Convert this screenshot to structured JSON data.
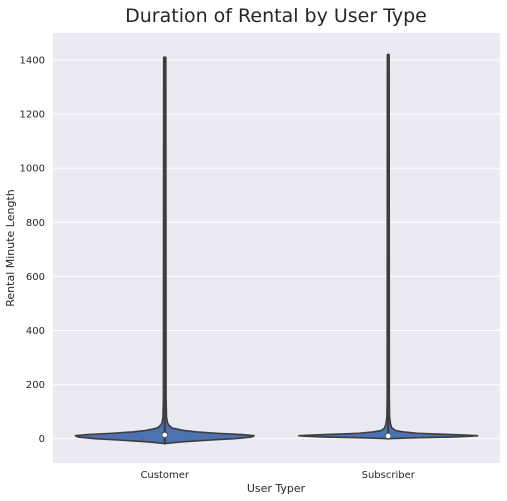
{
  "chart_data": {
    "type": "violin",
    "title": "Duration of Rental by User Type",
    "xlabel": "User Typer",
    "ylabel": "Rental Minute Length",
    "categories": [
      "Customer",
      "Subscriber"
    ],
    "ylim": [
      -90,
      1500
    ],
    "yticks": [
      0,
      200,
      400,
      600,
      800,
      1000,
      1200,
      1400
    ],
    "grid": true,
    "violins": [
      {
        "category": "Customer",
        "min": -18,
        "max": 1410,
        "median": 14,
        "q1": 6,
        "q3": 25,
        "profile": [
          [
            -18,
            0.0
          ],
          [
            -12,
            0.18
          ],
          [
            -5,
            0.52
          ],
          [
            0,
            0.78
          ],
          [
            6,
            0.97
          ],
          [
            11,
            1.0
          ],
          [
            15,
            0.86
          ],
          [
            20,
            0.58
          ],
          [
            25,
            0.36
          ],
          [
            30,
            0.22
          ],
          [
            35,
            0.14
          ],
          [
            40,
            0.08
          ],
          [
            50,
            0.045
          ],
          [
            60,
            0.03
          ],
          [
            80,
            0.02
          ],
          [
            150,
            0.015
          ],
          [
            1410,
            0.012
          ]
        ]
      },
      {
        "category": "Subscriber",
        "min": 0,
        "max": 1420,
        "median": 10,
        "q1": 5,
        "q3": 17,
        "profile": [
          [
            0,
            0.0
          ],
          [
            3,
            0.28
          ],
          [
            6,
            0.7
          ],
          [
            9,
            0.93
          ],
          [
            11,
            1.0
          ],
          [
            14,
            0.82
          ],
          [
            17,
            0.55
          ],
          [
            20,
            0.33
          ],
          [
            25,
            0.17
          ],
          [
            30,
            0.08
          ],
          [
            40,
            0.04
          ],
          [
            55,
            0.025
          ],
          [
            80,
            0.015
          ],
          [
            150,
            0.012
          ],
          [
            1420,
            0.01
          ]
        ]
      }
    ],
    "colors": {
      "background": "#eaeaf2",
      "grid": "#ffffff",
      "fill": "#4c72b0",
      "outline": "#3d3d3d",
      "median": "#ffffff"
    }
  }
}
